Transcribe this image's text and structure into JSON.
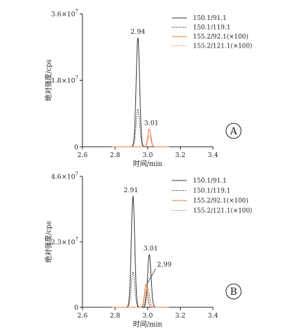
{
  "chart_data": [
    {
      "type": "line",
      "panel_label": "A",
      "xlabel": "时间/min",
      "ylabel": "绝对强度/cps",
      "xlim": [
        2.6,
        3.4
      ],
      "ylim": [
        0,
        36000000
      ],
      "x_ticks": [
        "2.6",
        "2.8",
        "3.0",
        "3.2",
        "3.4"
      ],
      "y_ticks": [
        {
          "value": 0,
          "mantissa": "0",
          "exp": ""
        },
        {
          "value": 18000000,
          "mantissa": "1.8×10",
          "exp": "7"
        },
        {
          "value": 36000000,
          "mantissa": "3.6×10",
          "exp": "7"
        }
      ],
      "grid": false,
      "legend_position": "top-right",
      "series": [
        {
          "name": "150.1/91.1",
          "color": "#333333",
          "style": "solid",
          "peak": {
            "x": 2.94,
            "y": 29500000,
            "sigma": 0.0105
          }
        },
        {
          "name": "150.1/119.1",
          "color": "#333333",
          "style": "dotted",
          "peak": {
            "x": 2.94,
            "y": 10200000,
            "sigma": 0.0105
          }
        },
        {
          "name": "155.2/92.1(×100)",
          "color": "#e8733c",
          "style": "solid",
          "peak": {
            "x": 3.01,
            "y": 4800000,
            "sigma": 0.0095
          }
        },
        {
          "name": "155.2/121.1(×100)",
          "color": "#e8733c",
          "style": "dotted",
          "peak": {
            "x": 3.01,
            "y": 2900000,
            "sigma": 0.0095
          }
        }
      ],
      "annotations": [
        {
          "text": "2.94",
          "x": 2.94,
          "y": 29500000
        },
        {
          "text": "3.01",
          "x": 3.01,
          "y": 4800000
        }
      ]
    },
    {
      "type": "line",
      "panel_label": "B",
      "xlabel": "时间/min",
      "ylabel": "绝对强度/cps",
      "xlim": [
        2.6,
        3.4
      ],
      "ylim": [
        0,
        46000000
      ],
      "x_ticks": [
        "2.6",
        "2.8",
        "3.0",
        "3.2",
        "3.4"
      ],
      "y_ticks": [
        {
          "value": 0,
          "mantissa": "0",
          "exp": ""
        },
        {
          "value": 23000000,
          "mantissa": "2.3×10",
          "exp": "7"
        },
        {
          "value": 46000000,
          "mantissa": "4.6×10",
          "exp": "7"
        }
      ],
      "grid": false,
      "legend_position": "top-right",
      "series": [
        {
          "name": "150.1/91.1",
          "color": "#333333",
          "style": "solid",
          "peaks": [
            {
              "x": 2.91,
              "y": 39000000,
              "sigma": 0.0105
            },
            {
              "x": 3.01,
              "y": 18500000,
              "sigma": 0.0105
            }
          ]
        },
        {
          "name": "150.1/119.1",
          "color": "#333333",
          "style": "dotted",
          "peaks": [
            {
              "x": 2.91,
              "y": 12500000,
              "sigma": 0.0105
            },
            {
              "x": 3.0,
              "y": 7000000,
              "sigma": 0.0105
            }
          ]
        },
        {
          "name": "155.2/92.1(×100)",
          "color": "#e8733c",
          "style": "solid",
          "peaks": [
            {
              "x": 2.99,
              "y": 8000000,
              "sigma": 0.0095
            }
          ]
        },
        {
          "name": "155.2/121.1(×100)",
          "color": "#e8733c",
          "style": "dotted",
          "peaks": [
            {
              "x": 2.99,
              "y": 6000000,
              "sigma": 0.0095
            }
          ]
        }
      ],
      "annotations": [
        {
          "text": "2.91",
          "x": 2.91,
          "y": 39000000
        },
        {
          "text": "3.01",
          "x": 3.01,
          "y": 18500000
        },
        {
          "text": "2.99",
          "x": 2.99,
          "y": 8000000,
          "leader": true
        }
      ]
    }
  ]
}
